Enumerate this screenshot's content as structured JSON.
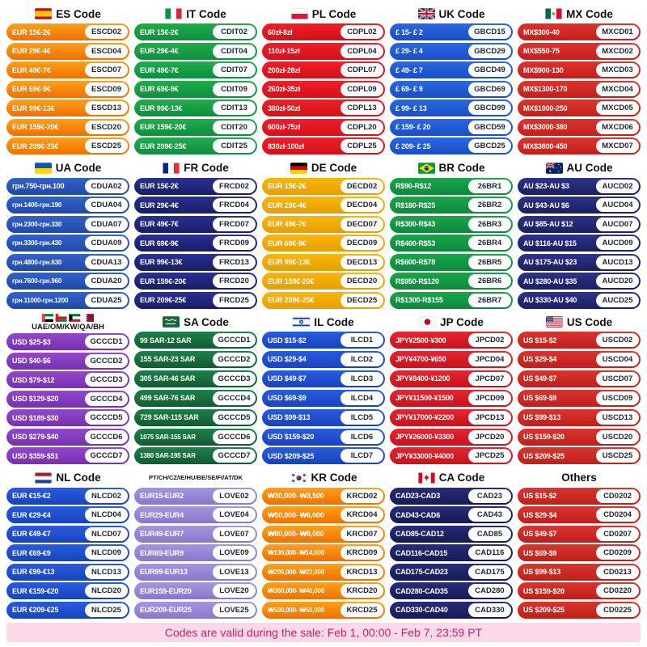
{
  "footer": {
    "text": "Codes are valid during the sale: Feb 1, 00:00 - Feb 7, 23:59 PT"
  },
  "footer_colors": {
    "background": "#FBD9E9",
    "text": "#C2256E"
  },
  "sections": [
    {
      "id": "es",
      "flag": "es",
      "title": "ES Code",
      "colors": [
        "#FAA11B",
        "#F06F00"
      ],
      "rows": [
        {
          "range": "EUR 15€-2€",
          "code": "ESCD02"
        },
        {
          "range": "EUR 29€-4€",
          "code": "ESCD04"
        },
        {
          "range": "EUR 49€-7€",
          "code": "ESCD07"
        },
        {
          "range": "EUR 69€-9€",
          "code": "ESCD09"
        },
        {
          "range": "EUR 99€-13€",
          "code": "ESCD13"
        },
        {
          "range": "EUR 159€-20€",
          "code": "ESCD20"
        },
        {
          "range": "EUR 209€-25€",
          "code": "ESCD25"
        }
      ]
    },
    {
      "id": "it",
      "flag": "it",
      "title": "IT Code",
      "colors": [
        "#22AC4A",
        "#0D8F3F"
      ],
      "rows": [
        {
          "range": "EUR 15€-2€",
          "code": "CDIT02"
        },
        {
          "range": "EUR 29€-4€",
          "code": "CDIT04"
        },
        {
          "range": "EUR 49€-7€",
          "code": "CDIT07"
        },
        {
          "range": "EUR 69€-9€",
          "code": "CDIT09"
        },
        {
          "range": "EUR 99€-13€",
          "code": "CDIT13"
        },
        {
          "range": "EUR 159€-20€",
          "code": "CDIT20"
        },
        {
          "range": "EUR 209€-25€",
          "code": "CDIT25"
        }
      ]
    },
    {
      "id": "pl",
      "flag": "pl",
      "title": "PL Code",
      "colors": [
        "#F01E28",
        "#D31118"
      ],
      "rows": [
        {
          "range": "60zł-8zł",
          "code": "CDPL02"
        },
        {
          "range": "110zł-15zł",
          "code": "CDPL04"
        },
        {
          "range": "200zł-28zł",
          "code": "CDPL07"
        },
        {
          "range": "260zł-35zł",
          "code": "CDPL09"
        },
        {
          "range": "380zł-50zł",
          "code": "CDPL13"
        },
        {
          "range": "600zł-75zł",
          "code": "CDPL20"
        },
        {
          "range": "830zł-100zł",
          "code": "CDPL25"
        }
      ]
    },
    {
      "id": "uk",
      "flag": "gb",
      "title": "UK Code",
      "colors": [
        "#2B68E0",
        "#1A4EC6"
      ],
      "rows": [
        {
          "range": "£ 15- £ 2",
          "code": "GBCD15"
        },
        {
          "range": "£ 29- £ 4",
          "code": "GBCD29"
        },
        {
          "range": "£ 49- £ 7",
          "code": "GBCD49"
        },
        {
          "range": "£ 69- £ 9",
          "code": "GBCD69"
        },
        {
          "range": "£ 99- £ 13",
          "code": "GBCD99"
        },
        {
          "range": "£ 159- £ 20",
          "code": "GBCD59"
        },
        {
          "range": "£ 209- £ 25",
          "code": "GBCD25"
        }
      ]
    },
    {
      "id": "mx",
      "flag": "mx",
      "title": "MX Code",
      "colors": [
        "#DC3530",
        "#C31F1B"
      ],
      "rows": [
        {
          "range": "MX$300-40",
          "code": "MXCD01"
        },
        {
          "range": "MX$550-75",
          "code": "MXCD02"
        },
        {
          "range": "MX$900-130",
          "code": "MXCD03"
        },
        {
          "range": "MX$1300-170",
          "code": "MXCD04"
        },
        {
          "range": "MX$1900-250",
          "code": "MXCD05"
        },
        {
          "range": "MX$3000-380",
          "code": "MXCD06"
        },
        {
          "range": "MX$3800-450",
          "code": "MXCD07"
        }
      ]
    },
    {
      "id": "ua",
      "flag": "ua",
      "title": "UA Code",
      "colors": [
        "#3263C6",
        "#2148AB"
      ],
      "rows": [
        {
          "range": "грн.750-грн.100",
          "code": "CDUA02"
        },
        {
          "range": "грн.1400-грн.190",
          "code": "CDUA04"
        },
        {
          "range": "грн.2300-грн.330",
          "code": "CDUA07"
        },
        {
          "range": "грн.3300-грн.430",
          "code": "CDUA09"
        },
        {
          "range": "грн.4800-грн.630",
          "code": "CDUA13"
        },
        {
          "range": "грн.7600-грн.960",
          "code": "CDUA20"
        },
        {
          "range": "грн.11000-грн.1200",
          "code": "CDUA25"
        }
      ]
    },
    {
      "id": "fr",
      "flag": "fr",
      "title": "FR Code",
      "colors": [
        "#2A3090",
        "#181D68"
      ],
      "rows": [
        {
          "range": "EUR 15€-2€",
          "code": "FRCD02"
        },
        {
          "range": "EUR 29€-4€",
          "code": "FRCD04"
        },
        {
          "range": "EUR 49€-7€",
          "code": "FRCD07"
        },
        {
          "range": "EUR 69€-9€",
          "code": "FRCD09"
        },
        {
          "range": "EUR 99€-13€",
          "code": "FRCD13"
        },
        {
          "range": "EUR 159€-20€",
          "code": "FRCD20"
        },
        {
          "range": "EUR 209€-25€",
          "code": "FRCD25"
        }
      ]
    },
    {
      "id": "de",
      "flag": "de",
      "title": "DE Code",
      "colors": [
        "#F7B70C",
        "#E89E00"
      ],
      "rows": [
        {
          "range": "EUR 15€-2€",
          "code": "DECD02"
        },
        {
          "range": "EUR 29€-4€",
          "code": "DECD04"
        },
        {
          "range": "EUR 49€-7€",
          "code": "DECD07"
        },
        {
          "range": "EUR 69€-9€",
          "code": "DECD09"
        },
        {
          "range": "EUR 99€-13€",
          "code": "DECD13"
        },
        {
          "range": "EUR 159€-20€",
          "code": "DECD20"
        },
        {
          "range": "EUR 209€-25€",
          "code": "DECD25"
        }
      ]
    },
    {
      "id": "br",
      "flag": "br",
      "title": "BR Code",
      "colors": [
        "#1CA44A",
        "#0B8B3C"
      ],
      "rows": [
        {
          "range": "R$90-R$12",
          "code": "26BR1"
        },
        {
          "range": "R$180-R$25",
          "code": "26BR2"
        },
        {
          "range": "R$300-R$43",
          "code": "26BR3"
        },
        {
          "range": "R$400-R$53",
          "code": "26BR4"
        },
        {
          "range": "R$600-R$78",
          "code": "26BR5"
        },
        {
          "range": "R$950-R$120",
          "code": "26BR6"
        },
        {
          "range": "R$1300-R$155",
          "code": "26BR7"
        }
      ]
    },
    {
      "id": "au",
      "flag": "au",
      "title": "AU Code",
      "colors": [
        "#2D3288",
        "#1B2062"
      ],
      "rows": [
        {
          "range": "AU $23-AU $3",
          "code": "AUCD02"
        },
        {
          "range": "AU $43-AU $6",
          "code": "AUCD04"
        },
        {
          "range": "AU $85-AU $12",
          "code": "AUCD07"
        },
        {
          "range": "AU $116-AU $15",
          "code": "AUCD09"
        },
        {
          "range": "AU $175-AU $23",
          "code": "AUCD13"
        },
        {
          "range": "AU $280-AU $35",
          "code": "AUCD20"
        },
        {
          "range": "AU $330-AU $40",
          "code": "AUCD25"
        }
      ]
    },
    {
      "id": "gcc",
      "flag": "gcc",
      "title": "UAE/OM/KW/QA/BH",
      "colors": [
        "#9347CC",
        "#7530B0"
      ],
      "rows": [
        {
          "range": "USD $25-$3",
          "code": "GCCCD1"
        },
        {
          "range": "USD $40-$6",
          "code": "GCCCD2"
        },
        {
          "range": "USD $79-$12",
          "code": "GCCCD3"
        },
        {
          "range": "USD $129-$20",
          "code": "GCCCD4"
        },
        {
          "range": "USD $189-$30",
          "code": "GCCCD5"
        },
        {
          "range": "USD $279-$40",
          "code": "GCCCD6"
        },
        {
          "range": "USD $359-$51",
          "code": "GCCCD7"
        }
      ]
    },
    {
      "id": "sa",
      "flag": "sa",
      "title": "SA Code",
      "colors": [
        "#20804A",
        "#0F5C30"
      ],
      "rows": [
        {
          "range": "99 SAR-12 SAR",
          "code": "GCCCD1"
        },
        {
          "range": "155 SAR-23 SAR",
          "code": "GCCCD2"
        },
        {
          "range": "305 SAR-46 SAR",
          "code": "GCCCD3"
        },
        {
          "range": "499 SAR-76 SAR",
          "code": "GCCCD4"
        },
        {
          "range": "729 SAR-115 SAR",
          "code": "GCCCD5"
        },
        {
          "range": "1075 SAR-155 SAR",
          "code": "GCCCD6"
        },
        {
          "range": "1380 SAR-195 SAR",
          "code": "GCCCD7"
        }
      ]
    },
    {
      "id": "il",
      "flag": "il",
      "title": "IL Code",
      "colors": [
        "#2A5BDE",
        "#1843BE"
      ],
      "rows": [
        {
          "range": "USD $15-$2",
          "code": "ILCD1"
        },
        {
          "range": "USD $29-$4",
          "code": "ILCD2"
        },
        {
          "range": "USD $49-$7",
          "code": "ILCD3"
        },
        {
          "range": "USD $69-$9",
          "code": "ILCD4"
        },
        {
          "range": "USD $99-$13",
          "code": "ILCD5"
        },
        {
          "range": "USD $159-$20",
          "code": "ILCD6"
        },
        {
          "range": "USD $209-$25",
          "code": "ILCD7"
        }
      ]
    },
    {
      "id": "jp",
      "flag": "jp",
      "title": "JP Code",
      "colors": [
        "#E4262F",
        "#C8141D"
      ],
      "rows": [
        {
          "range": "JPY¥2500-¥300",
          "code": "JPCD02"
        },
        {
          "range": "JPY¥4700-¥650",
          "code": "JPCD04"
        },
        {
          "range": "JPY¥8400-¥1200",
          "code": "JPCD07"
        },
        {
          "range": "JPY¥11500-¥1500",
          "code": "JPCD09"
        },
        {
          "range": "JPY¥17000-¥2200",
          "code": "JPCD13"
        },
        {
          "range": "JPY¥26000-¥3300",
          "code": "JPCD20"
        },
        {
          "range": "JPY¥33000-¥4000",
          "code": "JPCD25"
        }
      ]
    },
    {
      "id": "us",
      "flag": "us",
      "title": "US Code",
      "colors": [
        "#DA342E",
        "#BE201B"
      ],
      "rows": [
        {
          "range": "US $15-$2",
          "code": "USCD02"
        },
        {
          "range": "US $29-$4",
          "code": "USCD04"
        },
        {
          "range": "US $49-$7",
          "code": "USCD07"
        },
        {
          "range": "US $69-$9",
          "code": "USCD09"
        },
        {
          "range": "US $99-$13",
          "code": "USCD13"
        },
        {
          "range": "US $159-$20",
          "code": "USCD20"
        },
        {
          "range": "US $209-$25",
          "code": "USCD25"
        }
      ]
    },
    {
      "id": "nl",
      "flag": "nl",
      "title": "NL Code",
      "colors": [
        "#2A5BDE",
        "#1843BE"
      ],
      "rows": [
        {
          "range": "EUR €15-€2",
          "code": "NLCD02"
        },
        {
          "range": "EUR €29-€4",
          "code": "NLCD04"
        },
        {
          "range": "EUR €49-€7",
          "code": "NLCD07"
        },
        {
          "range": "EUR €69-€9",
          "code": "NLCD09"
        },
        {
          "range": "EUR €99-€13",
          "code": "NLCD13"
        },
        {
          "range": "EUR €159-€20",
          "code": "NLCD20"
        },
        {
          "range": "EUR €209-€25",
          "code": "NLCD25"
        }
      ]
    },
    {
      "id": "love",
      "flag": null,
      "title": "PT/CH/CZ/IE/HU/BE/SE/FI/AT/DK",
      "colors": [
        "#A495DE",
        "#8A77CE"
      ],
      "rows": [
        {
          "range": "EUR15-EUR2",
          "code": "LOVE02"
        },
        {
          "range": "EUR29-EUR4",
          "code": "LOVE04"
        },
        {
          "range": "EUR49-EUR7",
          "code": "LOVE07"
        },
        {
          "range": "EUR69-EUR9",
          "code": "LOVE09"
        },
        {
          "range": "EUR99-EUR13",
          "code": "LOVE13"
        },
        {
          "range": "EUR159-EUR20",
          "code": "LOVE20"
        },
        {
          "range": "EUR209-EUR25",
          "code": "LOVE25"
        }
      ]
    },
    {
      "id": "kr",
      "flag": "kr",
      "title": "KR Code",
      "colors": [
        "#FAA11B",
        "#F06F00"
      ],
      "rows": [
        {
          "range": "₩30,000- ₩3,500",
          "code": "KRCD02"
        },
        {
          "range": "₩50,000- ₩6,000",
          "code": "KRCD04"
        },
        {
          "range": "₩80,000- ₩9,000",
          "code": "KRCD07"
        },
        {
          "range": "₩130,000- ₩14,000",
          "code": "KRCD09"
        },
        {
          "range": "₩200,000- ₩22,000",
          "code": "KRCD13"
        },
        {
          "range": "₩360,000- ₩40,000",
          "code": "KRCD20"
        },
        {
          "range": "₩500,000- ₩50,000",
          "code": "KRCD25"
        }
      ]
    },
    {
      "id": "ca",
      "flag": "ca",
      "title": "CA Code",
      "colors": [
        "#282D78",
        "#161A54"
      ],
      "rows": [
        {
          "range": "CAD23-CAD3",
          "code": "CAD23"
        },
        {
          "range": "CAD43-CAD6",
          "code": "CAD43"
        },
        {
          "range": "CAD85-CAD12",
          "code": "CAD85"
        },
        {
          "range": "CAD116-CAD15",
          "code": "CAD116"
        },
        {
          "range": "CAD175-CAD23",
          "code": "CAD175"
        },
        {
          "range": "CAD280-CAD35",
          "code": "CAD280"
        },
        {
          "range": "CAD330-CAD40",
          "code": "CAD330"
        }
      ]
    },
    {
      "id": "others",
      "flag": null,
      "title": "Others",
      "colors": [
        "#DA342E",
        "#BE201B"
      ],
      "rows": [
        {
          "range": "US $15-$2",
          "code": "CD0202"
        },
        {
          "range": "US $29-$4",
          "code": "CD0204"
        },
        {
          "range": "US $49-$7",
          "code": "CD0207"
        },
        {
          "range": "US $69-$9",
          "code": "CD0209"
        },
        {
          "range": "US $99-$13",
          "code": "CD0213"
        },
        {
          "range": "US $159-$20",
          "code": "CD0220"
        },
        {
          "range": "US $209-$25",
          "code": "CD0225"
        }
      ]
    }
  ]
}
